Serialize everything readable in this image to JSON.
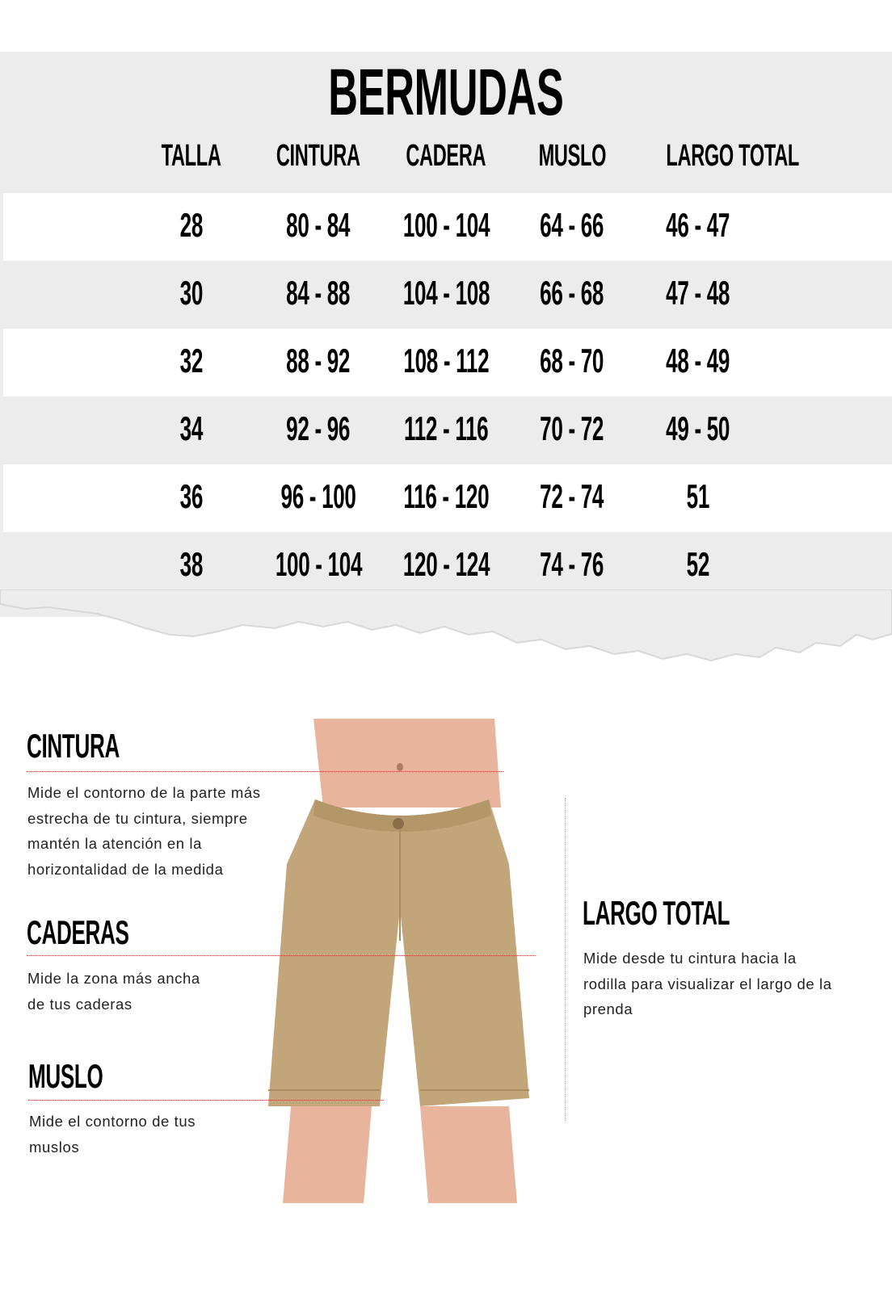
{
  "title": "BERMUDAS",
  "columns": [
    "TALLA",
    "CINTURA",
    "CADERA",
    "MUSLO",
    "LARGO TOTAL"
  ],
  "rows": [
    [
      "28",
      "80 - 84",
      "100 - 104",
      "64 - 66",
      "46 - 47"
    ],
    [
      "30",
      "84 - 88",
      "104 - 108",
      "66 - 68",
      "47 - 48"
    ],
    [
      "32",
      "88 - 92",
      "108 - 112",
      "68 - 70",
      "48 - 49"
    ],
    [
      "34",
      "92 - 96",
      "112 - 116",
      "70 - 72",
      "49 - 50"
    ],
    [
      "36",
      "96 - 100",
      "116 - 120",
      "72 - 74",
      "51"
    ],
    [
      "38",
      "100 - 104",
      "120 - 124",
      "74 - 76",
      "52"
    ]
  ],
  "guide": {
    "cintura": {
      "label": "CINTURA",
      "lines": [
        "Mide el contorno de la parte más",
        "estrecha de tu cintura, siempre",
        "mantén la atención en  la",
        "horizontalidad de la medida"
      ]
    },
    "caderas": {
      "label": "CADERAS",
      "lines": [
        "Mide la zona más ancha",
        "de tus caderas"
      ]
    },
    "muslo": {
      "label": "MUSLO",
      "lines": [
        "Mide el contorno de tus",
        "muslos"
      ]
    },
    "largo": {
      "label": "LARGO TOTAL",
      "lines": [
        "Mide desde tu cintura hacia la",
        "rodilla para visualizar el largo de la",
        "prenda"
      ]
    }
  },
  "colors": {
    "band": "#ececec",
    "guide_line": "#dd3333",
    "shorts": "#c2a67a",
    "skin": "#e8b59c"
  }
}
